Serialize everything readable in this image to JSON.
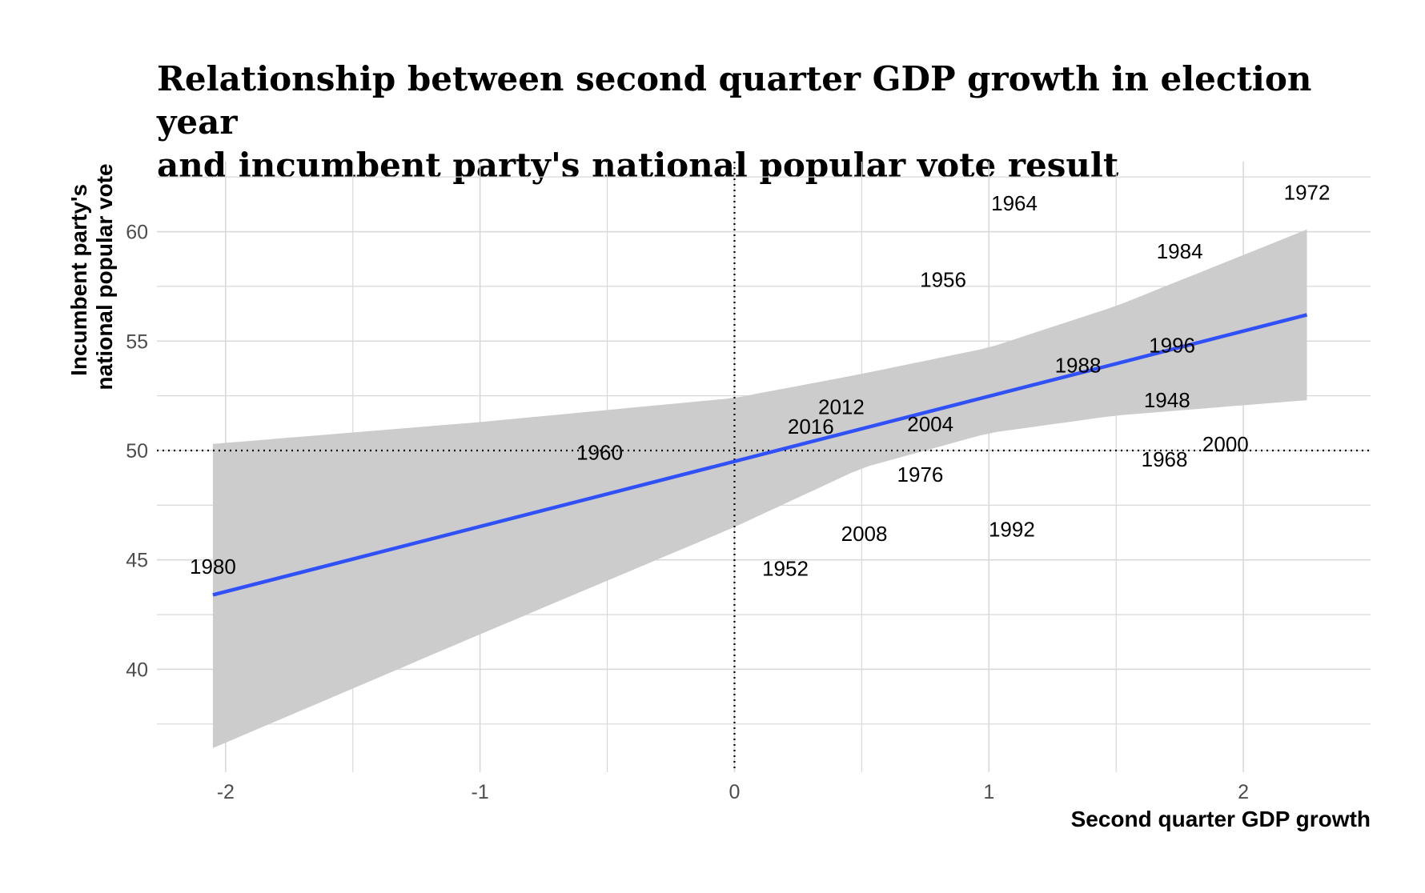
{
  "title": {
    "line1": "Relationship between second quarter GDP growth in election year",
    "line2": "and incumbent party's national popular vote result"
  },
  "colors": {
    "fit_line": "#3050f8",
    "ribbon": "#cccccc",
    "grid": "#d9d9d9",
    "reference_line": "#000000",
    "tick_text": "#4d4d4d"
  },
  "chart_data": {
    "type": "scatter",
    "xlabel": "Second quarter GDP growth",
    "ylabel_lines": [
      "Incumbent party's",
      "national popular vote"
    ],
    "xlim": [
      -2.27,
      2.5
    ],
    "ylim": [
      35.3,
      63.2
    ],
    "xticks": [
      -2,
      -1,
      0,
      1,
      2
    ],
    "yticks": [
      40,
      45,
      50,
      55,
      60
    ],
    "grid": true,
    "reference_lines": {
      "x": 0,
      "y": 50,
      "style": "dotted"
    },
    "points": [
      {
        "label": "1948",
        "x": 1.7,
        "y": 52.3
      },
      {
        "label": "1952",
        "x": 0.2,
        "y": 44.6
      },
      {
        "label": "1956",
        "x": 0.82,
        "y": 57.8
      },
      {
        "label": "1960",
        "x": -0.53,
        "y": 49.9
      },
      {
        "label": "1964",
        "x": 1.1,
        "y": 61.3
      },
      {
        "label": "1968",
        "x": 1.69,
        "y": 49.6
      },
      {
        "label": "1972",
        "x": 2.25,
        "y": 61.8
      },
      {
        "label": "1976",
        "x": 0.73,
        "y": 48.9
      },
      {
        "label": "1980",
        "x": -2.05,
        "y": 44.7
      },
      {
        "label": "1984",
        "x": 1.75,
        "y": 59.1
      },
      {
        "label": "1988",
        "x": 1.35,
        "y": 53.9
      },
      {
        "label": "1992",
        "x": 1.09,
        "y": 46.4
      },
      {
        "label": "1996",
        "x": 1.72,
        "y": 54.8
      },
      {
        "label": "2000",
        "x": 1.93,
        "y": 50.3
      },
      {
        "label": "2004",
        "x": 0.77,
        "y": 51.2
      },
      {
        "label": "2008",
        "x": 0.51,
        "y": 46.2
      },
      {
        "label": "2012",
        "x": 0.42,
        "y": 52.0
      },
      {
        "label": "2016",
        "x": 0.3,
        "y": 51.1
      }
    ],
    "fit": {
      "method": "linear",
      "x_start": -2.05,
      "x_end": 2.25,
      "y_start": 43.4,
      "y_end": 56.2
    },
    "confidence_band": {
      "x": [
        -2.05,
        -1.0,
        0.0,
        0.5,
        1.0,
        1.5,
        2.25
      ],
      "lower": [
        36.4,
        41.6,
        46.5,
        49.2,
        50.8,
        51.6,
        52.3
      ],
      "upper": [
        50.3,
        51.3,
        52.4,
        53.5,
        54.7,
        56.6,
        60.1
      ]
    }
  }
}
